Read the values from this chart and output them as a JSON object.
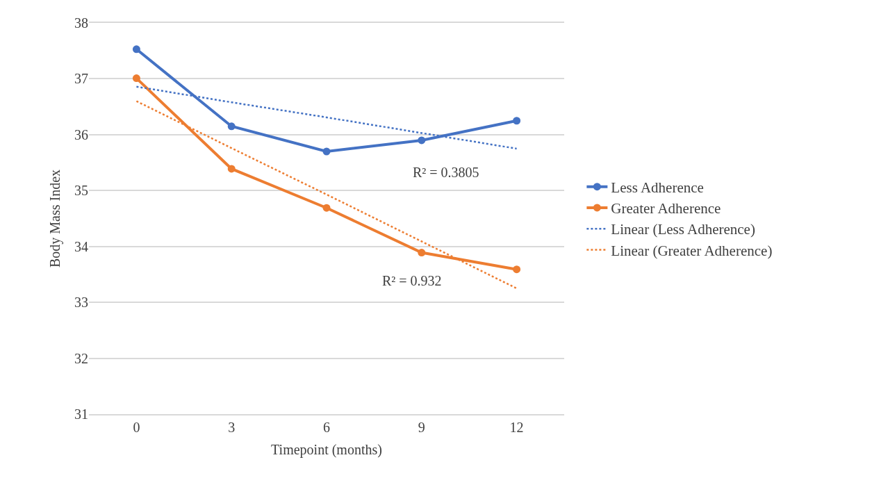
{
  "chart_data": {
    "type": "line",
    "xlabel": "Timepoint (months)",
    "ylabel": "Body Mass Index",
    "categories": [
      "0",
      "3",
      "6",
      "9",
      "12"
    ],
    "series": [
      {
        "name": "Less Adherence",
        "color": "#4472c4",
        "values": [
          37.53,
          36.15,
          35.7,
          35.9,
          36.25
        ],
        "marker": "circle",
        "line_style": "solid"
      },
      {
        "name": "Greater Adherence",
        "color": "#ed7d31",
        "values": [
          37.01,
          35.39,
          34.69,
          33.89,
          33.59
        ],
        "marker": "circle",
        "line_style": "solid"
      },
      {
        "name": "Linear (Less Adherence)",
        "color": "#4472c4",
        "values": [
          36.86,
          36.58,
          36.31,
          36.03,
          35.75
        ],
        "marker": "none",
        "line_style": "dotted"
      },
      {
        "name": "Linear (Greater Adherence)",
        "color": "#ed7d31",
        "values": [
          36.6,
          35.76,
          34.93,
          34.09,
          33.25
        ],
        "marker": "none",
        "line_style": "dotted"
      }
    ],
    "annotations": [
      "R² = 0.3805",
      "R² = 0.932"
    ],
    "ylim": [
      31,
      38
    ],
    "yticks": [
      31,
      32,
      33,
      34,
      35,
      36,
      37,
      38
    ],
    "grid": "y",
    "legend": "right"
  }
}
